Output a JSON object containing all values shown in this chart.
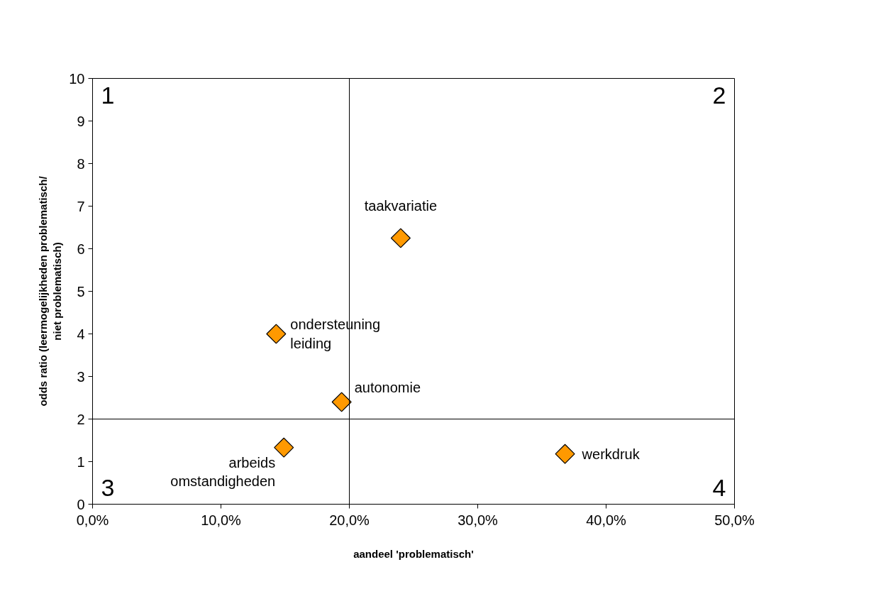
{
  "chart_data": {
    "type": "scatter",
    "xlabel": "aandeel 'problematisch'",
    "ylabel": "odds ratio (leermogelijkheden problematisch/ niet problematisch)",
    "x": [
      24.0,
      14.3,
      19.4,
      14.9,
      36.8
    ],
    "series": [
      {
        "color": "#ff9900",
        "values": [
          6.25,
          4.0,
          2.4,
          1.33,
          1.18
        ]
      }
    ],
    "marker": "diamond",
    "grid": false,
    "xlim": [
      0,
      50
    ],
    "xticks": [
      {
        "value": 0,
        "label": "0,0%"
      },
      {
        "value": 10,
        "label": "10,0%"
      },
      {
        "value": 20,
        "label": "20,0%"
      },
      {
        "value": 30,
        "label": "30,0%"
      },
      {
        "value": 40,
        "label": "40,0%"
      },
      {
        "value": 50,
        "label": "50,0%"
      }
    ],
    "ylim": [
      0,
      10
    ],
    "yticks": [
      0,
      1,
      2,
      3,
      4,
      5,
      6,
      7,
      8,
      9,
      10
    ],
    "ref_lines": [
      {
        "axis": "x",
        "value": 20,
        "color": "#000000"
      },
      {
        "axis": "y",
        "value": 2,
        "color": "#000000"
      }
    ],
    "annotations": [
      "1",
      "2",
      "3",
      "4",
      {
        "text": "taakvariatie",
        "x": 24.0,
        "y": 6.25
      },
      {
        "text": "ondersteuning\nleiding",
        "x": 14.3,
        "y": 4.0
      },
      {
        "text": "autonomie",
        "x": 19.4,
        "y": 2.4
      },
      {
        "text": "arbeids\nomstandigheden",
        "x": 14.9,
        "y": 1.33
      },
      {
        "text": "werkdruk",
        "x": 36.8,
        "y": 1.18
      }
    ]
  }
}
